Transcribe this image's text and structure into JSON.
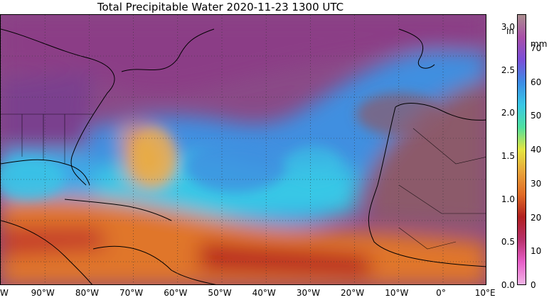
{
  "title": "Total Precipitable Water  2020-11-23 1300 UTC",
  "map": {
    "x_tick_labels": [
      "W",
      "90°W",
      "80°W",
      "70°W",
      "60°W",
      "50°W",
      "40°W",
      "30°W",
      "20°W",
      "10°W",
      "0°",
      "10°E"
    ],
    "colors": {
      "dry": "#8a4a87",
      "dry_light": "#a65aa6",
      "moist_blue": "#3f8fe0",
      "very_moist_cyan": "#39c7e6",
      "wet_orange": "#e0762a",
      "very_wet_red": "#b8241f",
      "land_dry_brown": "#8c5a6a",
      "coast": "#000000"
    }
  },
  "colorbar": {
    "inch_unit": "in",
    "mm_unit": "mm",
    "inch_ticks": [
      "0.0",
      "0.5",
      "1.0",
      "1.5",
      "2.0",
      "2.5",
      "3.0"
    ],
    "inch_values": [
      0.0,
      0.5,
      1.0,
      1.5,
      2.0,
      2.5,
      3.0
    ],
    "mm_ticks": [
      "0",
      "10",
      "20",
      "30",
      "40",
      "50",
      "60",
      "70"
    ],
    "mm_values": [
      0,
      10,
      20,
      30,
      40,
      50,
      60,
      70
    ],
    "max_inch": 3.15,
    "colors": [
      "#ab8e8e",
      "#a84fa8",
      "#7a4fd8",
      "#3d8ce6",
      "#39c7e6",
      "#4fe0a0",
      "#e5e640",
      "#e8a33a",
      "#e06a25",
      "#b02020",
      "#b7306a",
      "#e65fc8",
      "#f2b5e6"
    ]
  }
}
